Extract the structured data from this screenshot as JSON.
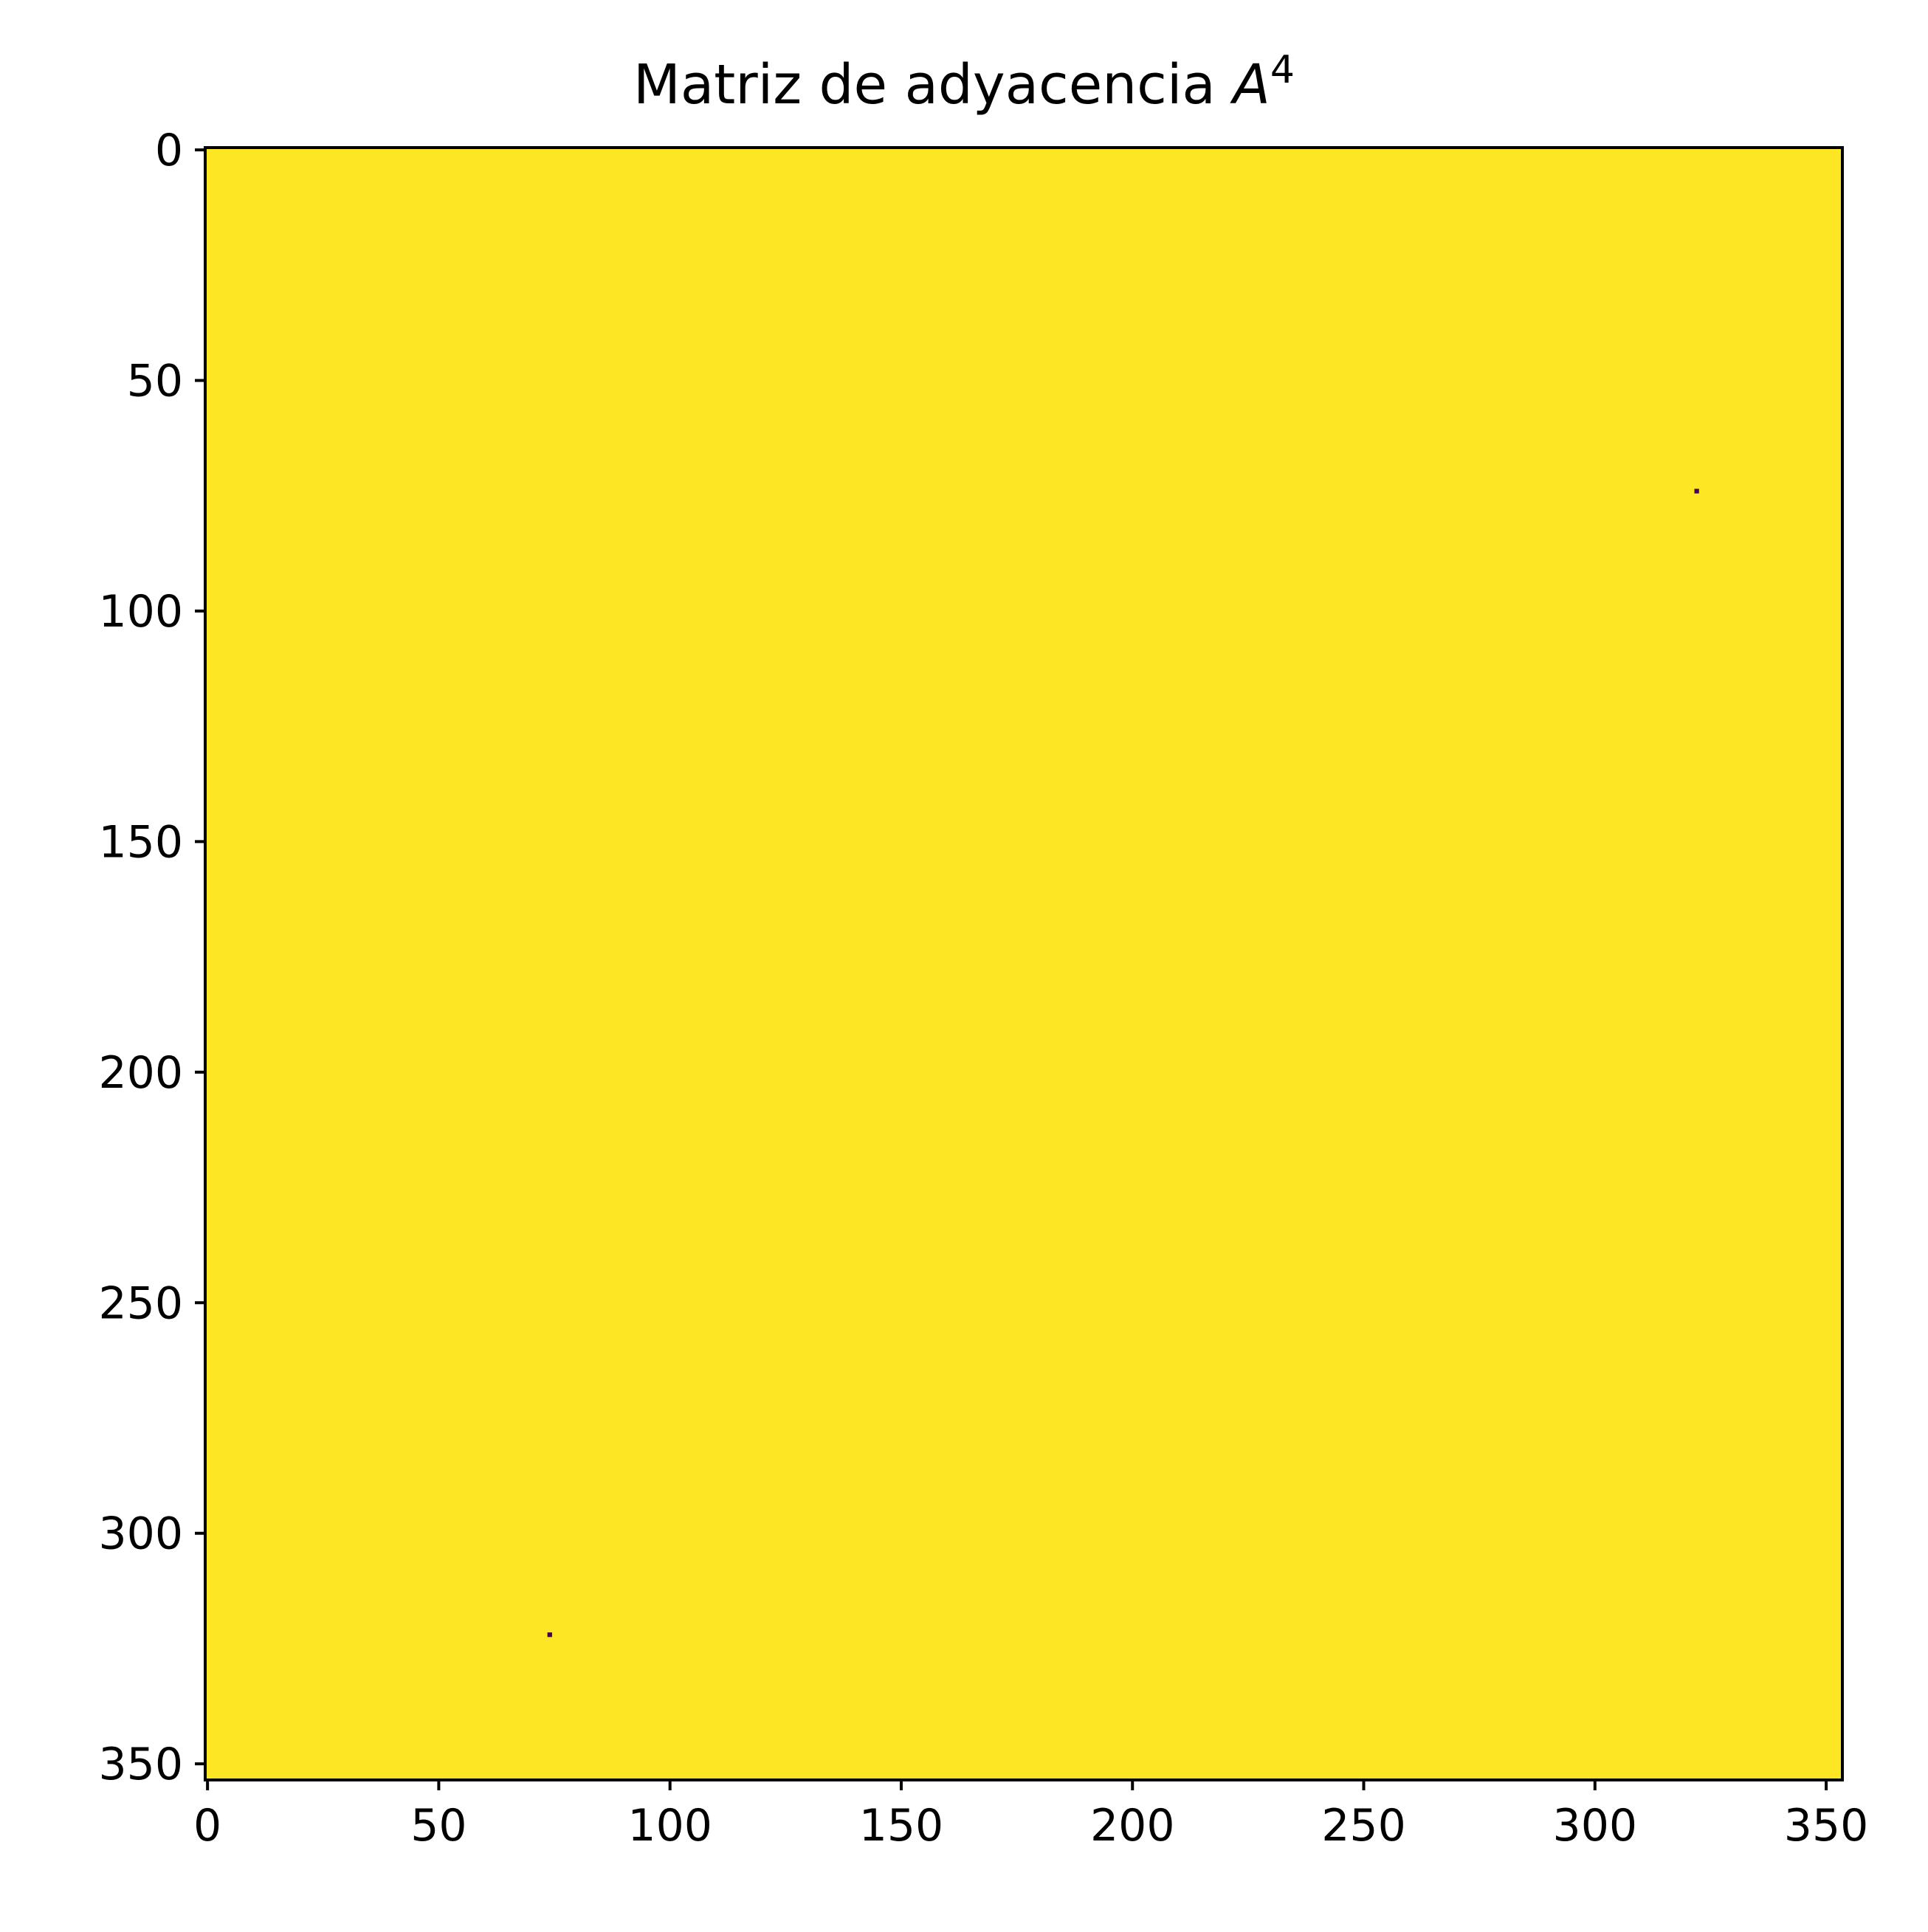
{
  "chart_data": {
    "type": "heatmap",
    "title": "Matriz de adyacencia",
    "title_superscript_base": "A",
    "title_superscript_exponent": "4",
    "matrix_size": 354,
    "xlim": [
      -0.5,
      353.5
    ],
    "ylim": [
      353.5,
      -0.5
    ],
    "x_ticks": [
      0,
      50,
      100,
      150,
      200,
      250,
      300,
      350
    ],
    "y_ticks": [
      0,
      50,
      100,
      150,
      200,
      250,
      300,
      350
    ],
    "x_tick_labels": [
      "0",
      "50",
      "100",
      "150",
      "200",
      "250",
      "300",
      "350"
    ],
    "y_tick_labels": [
      "0",
      "50",
      "100",
      "150",
      "200",
      "250",
      "300",
      "350"
    ],
    "background_value": "nonzero",
    "zero_cells": [
      {
        "row": 74,
        "col": 322
      },
      {
        "row": 322,
        "col": 74
      }
    ],
    "colors": {
      "nonzero_fill": "#fde725",
      "zero_fill": "#440154"
    },
    "grid": false,
    "legend": "none",
    "colorbar": false
  }
}
